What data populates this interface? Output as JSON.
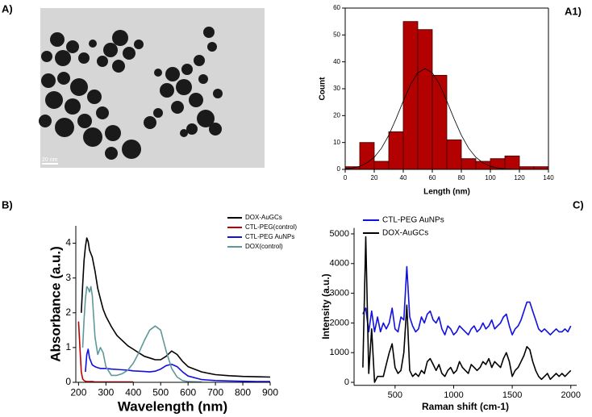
{
  "image": {
    "panel_label": "A)",
    "scale_label": "20 nm"
  },
  "chart_data": [
    {
      "type": "histogram",
      "panel_label": "A1)",
      "xlabel": "Length (nm)",
      "ylabel": "Count",
      "bins": [
        0,
        10,
        20,
        30,
        40,
        50,
        60,
        70,
        80,
        90,
        100,
        110,
        120,
        130,
        140
      ],
      "values": [
        1,
        10,
        3,
        14,
        55,
        52,
        35,
        11,
        4,
        3,
        4,
        5,
        1,
        1
      ],
      "color": "#b30000",
      "fit": {
        "x": [
          0,
          5,
          10,
          15,
          20,
          25,
          30,
          35,
          40,
          45,
          50,
          55,
          60,
          65,
          70,
          75,
          80,
          85,
          90,
          95,
          100,
          105,
          110,
          115,
          120,
          125,
          130,
          135,
          140
        ],
        "values": [
          0.2,
          0.5,
          1.1,
          2.4,
          4.5,
          7.9,
          12.7,
          18.8,
          25.4,
          31.6,
          35.9,
          37.5,
          35.9,
          31.6,
          25.4,
          18.8,
          12.7,
          7.9,
          4.5,
          2.4,
          1.1,
          0.5,
          0.2,
          0.1,
          0.03,
          0.01,
          0,
          0,
          0
        ],
        "color": "#000000"
      },
      "xlim": [
        0,
        140
      ],
      "xticks": [
        0,
        20,
        40,
        60,
        80,
        100,
        120,
        140
      ],
      "ylim": [
        0,
        60
      ],
      "yticks": [
        0,
        10,
        20,
        30,
        40,
        50,
        60
      ]
    },
    {
      "type": "line",
      "panel_label": "B)",
      "xlabel": "Wavelength (nm)",
      "ylabel": "Absorbance (a.u.)",
      "x": [
        200,
        205,
        210,
        215,
        220,
        225,
        230,
        235,
        240,
        245,
        250,
        260,
        270,
        280,
        290,
        300,
        320,
        340,
        360,
        380,
        400,
        420,
        440,
        460,
        480,
        500,
        520,
        540,
        560,
        580,
        600,
        650,
        700,
        750,
        800,
        850,
        900
      ],
      "series": [
        {
          "name": "DOX-AuGCs",
          "color": "#000000",
          "values": [
            null,
            null,
            2.0,
            2.8,
            3.5,
            3.9,
            4.15,
            4.05,
            3.8,
            3.7,
            3.6,
            3.2,
            2.7,
            2.4,
            2.1,
            1.9,
            1.6,
            1.35,
            1.2,
            1.05,
            0.95,
            0.85,
            0.75,
            0.7,
            0.65,
            0.65,
            0.75,
            0.9,
            0.8,
            0.6,
            0.45,
            0.3,
            0.22,
            0.19,
            0.17,
            0.16,
            0.15
          ]
        },
        {
          "name": "CTL-PEG(control)",
          "color": "#c00000",
          "values": [
            1.75,
            1.0,
            0.3,
            0.1,
            0.05,
            0.03,
            0.02,
            0.02,
            0.02,
            0.02,
            0.02,
            0.01,
            0.01,
            0.01,
            0.01,
            0.01,
            0.01,
            0.01,
            0.01,
            0.01,
            0.01,
            null,
            null,
            null,
            null,
            null,
            null,
            null,
            null,
            null,
            null,
            null,
            null,
            null,
            null,
            null,
            null
          ]
        },
        {
          "name": "CTL-PEG AuNPs",
          "color": "#1010e0",
          "values": [
            null,
            null,
            null,
            null,
            null,
            0.3,
            0.8,
            0.95,
            0.7,
            0.6,
            0.5,
            0.45,
            0.42,
            0.4,
            0.4,
            0.4,
            0.38,
            0.37,
            0.36,
            0.35,
            0.33,
            0.32,
            0.31,
            0.3,
            0.32,
            0.38,
            0.48,
            0.52,
            0.45,
            0.3,
            0.18,
            0.08,
            0.05,
            0.04,
            0.03,
            0.02,
            0.02
          ]
        },
        {
          "name": "DOX(control)",
          "color": "#5f9898",
          "values": [
            null,
            null,
            null,
            1.0,
            1.8,
            2.4,
            2.75,
            2.7,
            2.6,
            2.75,
            2.5,
            1.3,
            0.8,
            1.0,
            0.85,
            0.45,
            0.2,
            0.2,
            0.25,
            0.35,
            0.55,
            0.85,
            1.2,
            1.5,
            1.62,
            1.5,
            0.9,
            0.4,
            0.15,
            0.05,
            0.02,
            0.01,
            null,
            null,
            null,
            null,
            null
          ]
        }
      ],
      "legend": "upper right",
      "xlim": [
        190,
        900
      ],
      "xticks": [
        200,
        300,
        400,
        500,
        600,
        700,
        800,
        900
      ],
      "ylim": [
        0,
        4.5
      ],
      "yticks": [
        0,
        1,
        2,
        3,
        4
      ]
    },
    {
      "type": "line",
      "panel_label": "C)",
      "xlabel": "Raman shift (cm-1)",
      "ylabel": "Intensity (a.u.)",
      "x": [
        225,
        250,
        275,
        300,
        325,
        350,
        375,
        400,
        425,
        450,
        475,
        500,
        525,
        550,
        575,
        600,
        625,
        650,
        675,
        700,
        725,
        750,
        775,
        800,
        825,
        850,
        875,
        900,
        925,
        950,
        975,
        1000,
        1025,
        1050,
        1075,
        1100,
        1125,
        1150,
        1175,
        1200,
        1225,
        1250,
        1275,
        1300,
        1325,
        1350,
        1375,
        1400,
        1425,
        1450,
        1475,
        1500,
        1525,
        1550,
        1575,
        1600,
        1625,
        1650,
        1675,
        1700,
        1725,
        1750,
        1775,
        1800,
        1825,
        1850,
        1875,
        1900,
        1925,
        1950,
        1975,
        2000
      ],
      "series": [
        {
          "name": "CTL-PEG AuNPs",
          "color": "#1010e0",
          "values": [
            2300,
            2500,
            1700,
            2400,
            1700,
            2200,
            1700,
            2000,
            1800,
            2000,
            2500,
            1800,
            1700,
            2200,
            2100,
            3900,
            2200,
            1900,
            1700,
            1800,
            2200,
            2000,
            2300,
            2400,
            2100,
            2000,
            2200,
            1800,
            1600,
            1900,
            1800,
            1600,
            1700,
            1900,
            1800,
            1700,
            1600,
            1800,
            1900,
            1700,
            1800,
            2000,
            1800,
            1900,
            2100,
            1800,
            1900,
            2000,
            2200,
            2300,
            1900,
            1600,
            1800,
            1900,
            2100,
            2400,
            2700,
            2700,
            2400,
            2100,
            1800,
            1700,
            1800,
            1700,
            1600,
            1700,
            1800,
            1700,
            1700,
            1800,
            1700,
            1900
          ]
        },
        {
          "name": "DOX-AuGCs",
          "color": "#000000",
          "values": [
            500,
            4900,
            300,
            1800,
            0,
            200,
            200,
            200,
            600,
            1000,
            1300,
            500,
            300,
            400,
            1000,
            2600,
            400,
            200,
            300,
            200,
            400,
            300,
            700,
            800,
            600,
            400,
            600,
            300,
            200,
            400,
            500,
            300,
            400,
            700,
            500,
            400,
            300,
            600,
            500,
            400,
            500,
            700,
            600,
            800,
            500,
            700,
            600,
            500,
            800,
            1000,
            700,
            200,
            400,
            500,
            700,
            900,
            1200,
            1100,
            700,
            400,
            200,
            100,
            200,
            300,
            100,
            200,
            300,
            200,
            300,
            200,
            300,
            400
          ]
        }
      ],
      "legend": "upper left",
      "xlim": [
        150,
        2050
      ],
      "xticks": [
        500,
        1000,
        1500,
        2000
      ],
      "ylim": [
        -100,
        5200
      ],
      "yticks": [
        0,
        1000,
        2000,
        3000,
        4000,
        5000
      ]
    }
  ]
}
